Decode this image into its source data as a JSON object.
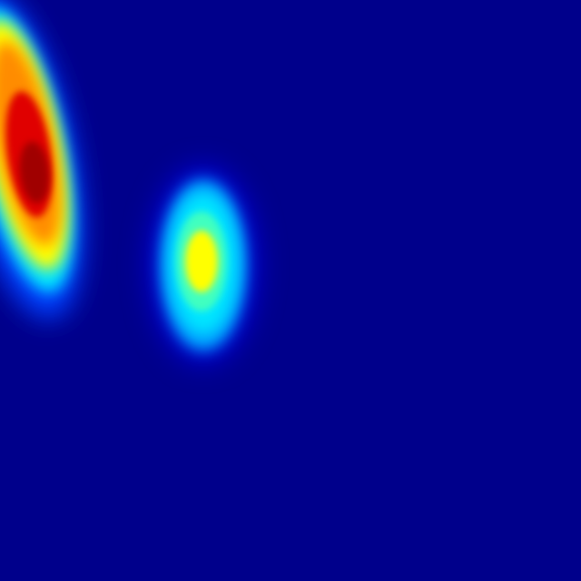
{
  "image": {
    "kind": "heatmap-jet-colormap",
    "colors": {
      "background": "#00008B",
      "deep_blue": "#0000CD",
      "blue": "#0040FF",
      "light_blue": "#00A0FF",
      "cyan": "#00E5FF",
      "green_cyan": "#40FFC0",
      "yellow_green": "#C0FF40",
      "yellow": "#FFFF00",
      "orange": "#FF8C00",
      "red": "#E00000",
      "dark_red": "#A00000"
    }
  }
}
